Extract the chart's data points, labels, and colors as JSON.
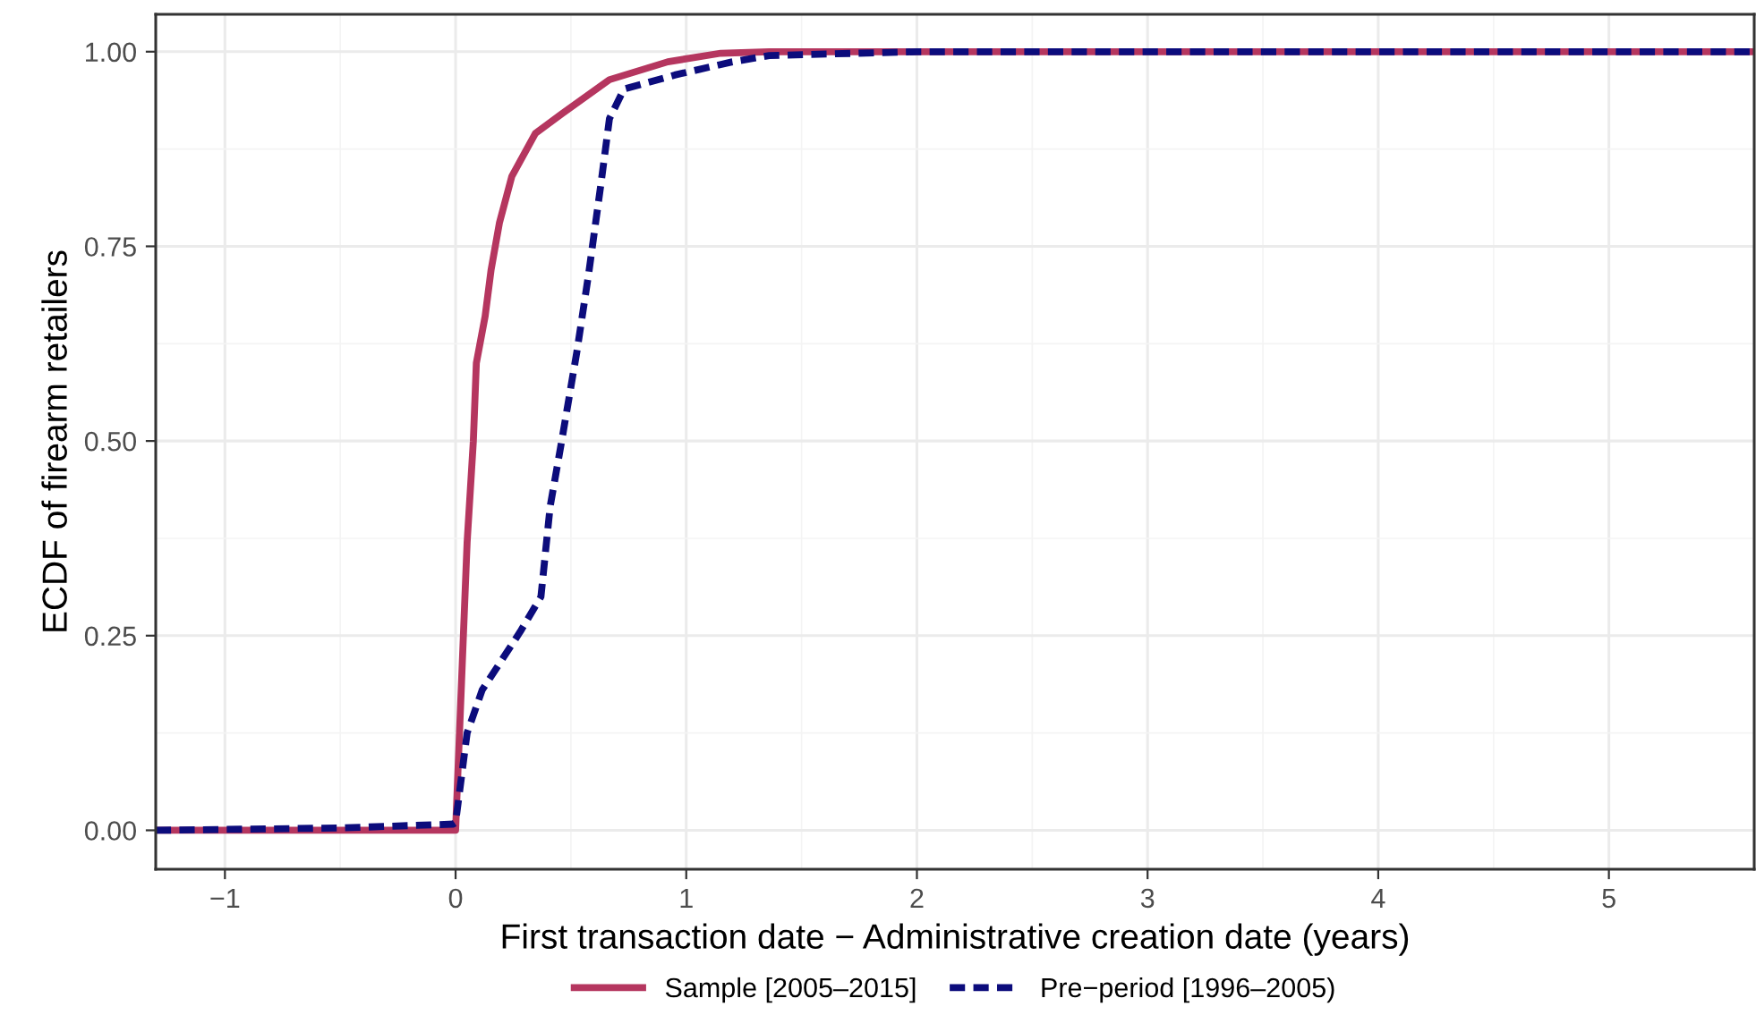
{
  "chart_data": {
    "type": "step",
    "xlabel": "First transaction date − Administrative creation date (years)",
    "ylabel": "ECDF of firearm retailers",
    "xlim": [
      -1.3,
      5.63
    ],
    "ylim": [
      -0.05,
      1.048
    ],
    "xticks": [
      {
        "value": -1,
        "label": "−1"
      },
      0,
      1,
      2,
      3,
      4,
      5
    ],
    "yticks": [
      {
        "value": 0,
        "label": "0.00"
      },
      {
        "value": 0.25,
        "label": "0.25"
      },
      {
        "value": 0.5,
        "label": "0.50"
      },
      {
        "value": 0.75,
        "label": "0.75"
      },
      {
        "value": 1,
        "label": "1.00"
      }
    ],
    "grid": true,
    "legend": "bottom",
    "series": [
      {
        "name": "Sample [2005–2015]",
        "color": "#b5365f",
        "line_style": "solid",
        "x": [
          -1.3,
          0,
          0.05,
          0.077,
          0.09,
          0.128,
          0.154,
          0.19,
          0.244,
          0.346,
          0.46,
          0.667,
          0.92,
          1.15,
          1.36,
          5.63
        ],
        "values": [
          0,
          0,
          0.37,
          0.5,
          0.6,
          0.66,
          0.72,
          0.78,
          0.84,
          0.895,
          0.92,
          0.964,
          0.987,
          0.998,
          1,
          1
        ]
      },
      {
        "name": "Pre−period [1996–2005)",
        "color": "#0c0c7c",
        "line_style": "dashed",
        "x": [
          -1.3,
          -0.5,
          -0.01,
          0,
          0.05,
          0.115,
          0.28,
          0.37,
          0.41,
          0.46,
          0.526,
          0.577,
          0.63,
          0.667,
          0.73,
          0.95,
          1.2,
          1.36,
          2,
          5.63
        ],
        "values": [
          0,
          0.003,
          0.008,
          0.01,
          0.125,
          0.18,
          0.255,
          0.3,
          0.416,
          0.5,
          0.615,
          0.715,
          0.83,
          0.914,
          0.952,
          0.97,
          0.987,
          0.995,
          1,
          1
        ]
      }
    ]
  }
}
